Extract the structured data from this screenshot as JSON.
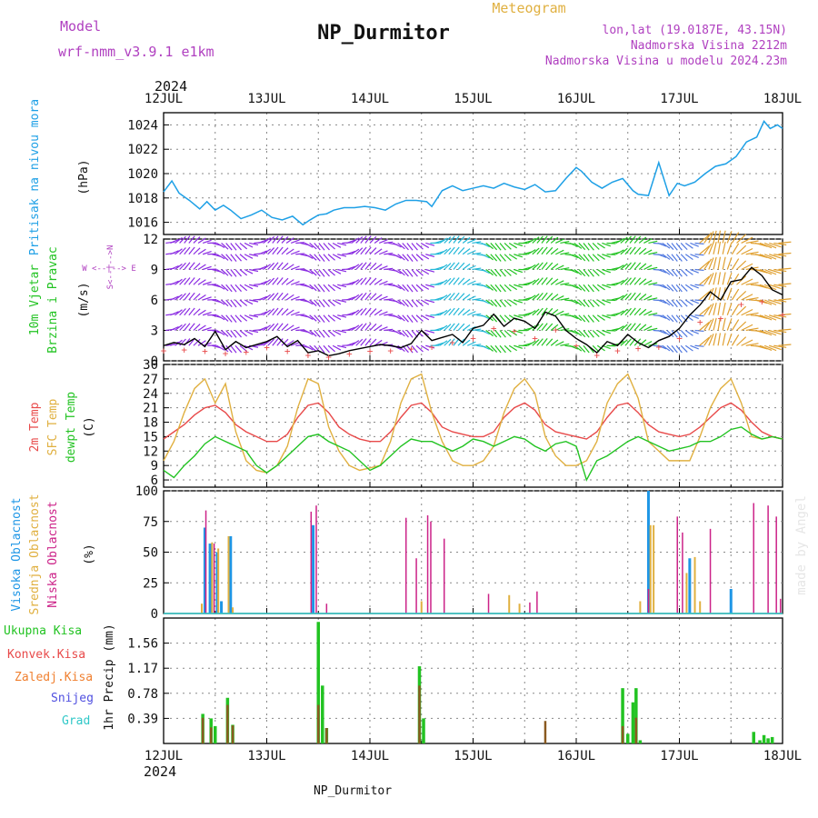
{
  "header": {
    "model_label": "Model",
    "model_name": "wrf-nmm_v3.9.1 e1km",
    "title": "NP_Durmitor",
    "meteogram": "Meteogram",
    "lonlat": "lon,lat (19.0187E, 43.15N)",
    "altitude": "Nadmorska Visina 2212m",
    "model_altitude": "Nadmorska Visina u modelu 2024.23m",
    "year_top": "2024",
    "year_bottom": "2024",
    "footer_name": "NP_Durmitor",
    "credit": "made by Angel"
  },
  "colors": {
    "pressure": "#1ea0e6",
    "wind_green": "#22c322",
    "temp2m": "#e84a4a",
    "sfc": "#e0b040",
    "dew": "#22c322",
    "high": "#1e96e6",
    "mid": "#e0b040",
    "low": "#cc2288",
    "total": "#22c322",
    "conv": "#e84a4a",
    "frozen": "#f08030",
    "snow": "#5050e0",
    "grad": "#30c8c8",
    "axis_label_purple": "#b040c0"
  },
  "chart_data": [
    {
      "type": "line",
      "panel": "pressure",
      "ylabel": "Pritisak na nivou mora",
      "unit": "(hPa)",
      "x_ticks": [
        "12JUL",
        "13JUL",
        "14JUL",
        "15JUL",
        "16JUL",
        "17JUL",
        "18JUL"
      ],
      "xlim_days": [
        0,
        6
      ],
      "ylim": [
        1015,
        1025
      ],
      "y_ticks": [
        1016,
        1018,
        1020,
        1022,
        1024
      ],
      "series": [
        {
          "x": [
            0,
            0.08,
            0.15,
            0.25,
            0.35,
            0.42,
            0.5,
            0.58,
            0.65,
            0.75,
            0.85,
            0.95,
            1.05,
            1.15,
            1.25,
            1.35,
            1.42,
            1.5,
            1.58,
            1.65,
            1.75,
            1.85,
            1.95,
            2.05,
            2.15,
            2.25,
            2.35,
            2.45,
            2.55,
            2.6,
            2.7,
            2.8,
            2.9,
            3.0,
            3.1,
            3.2,
            3.3,
            3.4,
            3.5,
            3.6,
            3.7,
            3.8,
            3.9,
            4.0,
            4.05,
            4.15,
            4.25,
            4.35,
            4.45,
            4.55,
            4.6,
            4.7,
            4.8,
            4.9,
            4.98,
            5.05,
            5.15,
            5.25,
            5.35,
            5.45,
            5.55,
            5.65,
            5.75,
            5.82,
            5.88,
            5.95,
            6.0
          ],
          "y": [
            1018.5,
            1019.4,
            1018.4,
            1017.8,
            1017.1,
            1017.7,
            1017.0,
            1017.4,
            1017.0,
            1016.3,
            1016.6,
            1017.0,
            1016.4,
            1016.2,
            1016.5,
            1015.8,
            1016.2,
            1016.6,
            1016.7,
            1017.0,
            1017.2,
            1017.2,
            1017.3,
            1017.2,
            1017.0,
            1017.5,
            1017.8,
            1017.8,
            1017.7,
            1017.3,
            1018.6,
            1019.0,
            1018.6,
            1018.8,
            1019.0,
            1018.8,
            1019.2,
            1018.9,
            1018.7,
            1019.1,
            1018.5,
            1018.6,
            1019.6,
            1020.5,
            1020.2,
            1019.3,
            1018.8,
            1019.3,
            1019.6,
            1018.6,
            1018.3,
            1018.2,
            1020.9,
            1018.2,
            1019.2,
            1019.0,
            1019.3,
            1020.0,
            1020.6,
            1020.8,
            1021.4,
            1022.6,
            1023.0,
            1024.3,
            1023.7,
            1024.0,
            1023.7
          ]
        }
      ]
    },
    {
      "type": "line",
      "panel": "wind",
      "ylabel": "10m Vjetar Brzina i Pravac",
      "unit": "(m/s)",
      "direction_key": "W <--|--> E",
      "direction_key_vertical": "S<--|-->N",
      "ylim": [
        0,
        12
      ],
      "y_ticks": [
        0,
        3,
        6,
        9,
        12
      ],
      "series": [
        {
          "name": "speed",
          "x": [
            0,
            0.1,
            0.2,
            0.3,
            0.4,
            0.5,
            0.6,
            0.7,
            0.8,
            0.9,
            1.0,
            1.1,
            1.2,
            1.3,
            1.4,
            1.5,
            1.6,
            1.7,
            1.8,
            1.9,
            2.0,
            2.1,
            2.2,
            2.3,
            2.4,
            2.5,
            2.6,
            2.7,
            2.8,
            2.9,
            3.0,
            3.1,
            3.2,
            3.3,
            3.4,
            3.5,
            3.6,
            3.7,
            3.8,
            3.9,
            4.0,
            4.1,
            4.2,
            4.3,
            4.4,
            4.5,
            4.6,
            4.7,
            4.8,
            4.9,
            5.0,
            5.1,
            5.2,
            5.3,
            5.4,
            5.5,
            5.6,
            5.7,
            5.8,
            5.9,
            6.0
          ],
          "y": [
            1.5,
            1.8,
            1.6,
            2.2,
            1.4,
            2.9,
            1.1,
            1.9,
            1.3,
            1.6,
            1.9,
            2.4,
            1.4,
            2.0,
            0.8,
            1.0,
            0.5,
            0.7,
            1.0,
            1.2,
            1.4,
            1.6,
            1.5,
            1.3,
            1.7,
            3.0,
            2.0,
            2.3,
            2.6,
            1.8,
            3.2,
            3.5,
            4.6,
            3.4,
            4.2,
            3.9,
            3.2,
            4.8,
            4.4,
            3.0,
            2.2,
            1.6,
            0.8,
            1.9,
            1.5,
            2.6,
            1.8,
            1.3,
            2.0,
            2.4,
            3.2,
            4.5,
            5.5,
            6.8,
            6.0,
            7.8,
            8.0,
            9.2,
            8.4,
            7.0,
            6.5
          ]
        }
      ]
    },
    {
      "type": "line",
      "panel": "temperature",
      "ylabel_1": "2m Temp",
      "ylabel_2": "SFC Temp",
      "ylabel_3": "dewpt Temp",
      "unit": "(C)",
      "ylim": [
        4.5,
        30
      ],
      "y_ticks": [
        6,
        9,
        12,
        15,
        18,
        21,
        24,
        27,
        30
      ],
      "x": [
        0,
        0.1,
        0.2,
        0.3,
        0.4,
        0.5,
        0.6,
        0.7,
        0.8,
        0.9,
        1.0,
        1.1,
        1.2,
        1.3,
        1.4,
        1.5,
        1.6,
        1.7,
        1.8,
        1.9,
        2.0,
        2.1,
        2.2,
        2.3,
        2.4,
        2.5,
        2.6,
        2.7,
        2.8,
        2.9,
        3.0,
        3.1,
        3.2,
        3.3,
        3.4,
        3.5,
        3.6,
        3.7,
        3.8,
        3.9,
        4.0,
        4.1,
        4.2,
        4.3,
        4.4,
        4.5,
        4.6,
        4.7,
        4.8,
        4.9,
        5.0,
        5.1,
        5.2,
        5.3,
        5.4,
        5.5,
        5.6,
        5.7,
        5.8,
        5.9,
        6.0
      ],
      "series": [
        {
          "name": "2m Temp",
          "values": [
            14.5,
            16,
            17.5,
            19.5,
            21,
            21.5,
            20,
            17.5,
            16,
            15,
            14,
            14,
            15.5,
            19,
            21.5,
            22,
            20,
            17,
            15.5,
            14.5,
            14,
            14,
            16,
            19,
            21.5,
            22,
            20,
            17,
            16,
            15.5,
            15,
            15,
            16,
            19,
            21,
            22,
            20.5,
            17.5,
            16,
            15.5,
            15,
            14.5,
            16,
            19,
            21.5,
            22,
            20,
            17.5,
            16,
            15.5,
            15,
            15.5,
            17,
            19,
            21,
            22,
            20.5,
            18,
            16,
            15,
            14.5
          ]
        },
        {
          "name": "SFC Temp",
          "values": [
            10,
            14,
            20,
            25,
            27,
            22,
            26,
            16,
            10,
            8,
            7.5,
            9,
            13,
            21,
            27,
            26,
            17,
            12,
            9,
            8,
            8.5,
            9,
            14,
            22,
            27,
            28,
            20,
            14,
            10,
            9,
            9,
            10,
            13,
            20,
            25,
            27,
            24,
            15,
            11,
            9,
            9,
            10,
            14,
            22,
            26,
            28,
            23,
            14,
            12,
            10,
            10,
            10,
            15,
            21,
            25,
            27,
            22,
            15,
            14.5,
            15,
            14.5
          ]
        },
        {
          "name": "dewpt Temp",
          "values": [
            8,
            6.5,
            9,
            11,
            13.5,
            15,
            14,
            13,
            12,
            9,
            7.5,
            9,
            11,
            13,
            15,
            15.5,
            14,
            13,
            12,
            10,
            8,
            9,
            11,
            13,
            14.5,
            14,
            14,
            13,
            12,
            13,
            14.5,
            14,
            13,
            14,
            15,
            14.5,
            13,
            12,
            13.5,
            14,
            13,
            6,
            10,
            11,
            12.5,
            14,
            15,
            14,
            13,
            12,
            12.5,
            13,
            14,
            14,
            15,
            16.5,
            17,
            15.5,
            14.5,
            15,
            14.5
          ]
        }
      ]
    },
    {
      "type": "bar",
      "panel": "cloud",
      "ylabel_1": "Visoka Oblacnost",
      "ylabel_2": "Srednja Oblacnost",
      "ylabel_3": "Niska Oblacnost",
      "unit": "(%)",
      "ylim": [
        0,
        100
      ],
      "y_ticks": [
        0,
        25,
        50,
        75,
        100
      ],
      "series": [
        {
          "name": "Visoka Oblacnost",
          "x": [
            0.4,
            0.45,
            0.52,
            0.56,
            0.65,
            1.45,
            4.7,
            5.1,
            5.5
          ],
          "values": [
            70,
            57,
            50,
            10,
            63,
            72,
            100,
            45,
            20
          ]
        },
        {
          "name": "Srednja Oblacnost",
          "x": [
            0.37,
            0.47,
            0.53,
            0.63,
            0.67,
            2.5,
            3.35,
            3.45,
            4.62,
            4.72,
            4.75,
            5.07,
            5.15,
            5.2
          ],
          "values": [
            8,
            58,
            53,
            63,
            5,
            10,
            15,
            8,
            10,
            72,
            72,
            33,
            46,
            10
          ]
        },
        {
          "name": "Niska Oblacnost",
          "x": [
            0.41,
            0.49,
            1.43,
            1.48,
            1.58,
            2.35,
            2.45,
            2.56,
            2.59,
            2.72,
            3.15,
            3.55,
            3.62,
            4.7,
            4.98,
            5.03,
            5.3,
            5.72,
            5.86,
            5.94,
            5.98
          ],
          "values": [
            84,
            57,
            83,
            88,
            8,
            78,
            45,
            80,
            75,
            61,
            16,
            9,
            18,
            20,
            79,
            66,
            69,
            90,
            88,
            79,
            12
          ]
        }
      ]
    },
    {
      "type": "bar",
      "panel": "precip",
      "ylabel_1": "Ukupna Kisa",
      "ylabel_2": "Konvek.Kisa",
      "ylabel_3": "Zaledj.Kisa",
      "ylabel_4": "Snijeg",
      "ylabel_5": "Grad",
      "unit": "1hr Precip (mm)",
      "ylim": [
        0,
        1.95
      ],
      "y_ticks": [
        0.39,
        0.78,
        1.17,
        1.56
      ],
      "series": [
        {
          "name": "Ukupna Kisa",
          "x": [
            0.38,
            0.46,
            0.5,
            0.62,
            0.67,
            1.5,
            1.54,
            1.58,
            2.48,
            2.52,
            4.45,
            4.5,
            4.55,
            4.58,
            4.62,
            5.72,
            5.78,
            5.82,
            5.86,
            5.9
          ],
          "values": [
            0.46,
            0.39,
            0.27,
            0.71,
            0.29,
            1.89,
            0.9,
            0.24,
            1.2,
            0.39,
            0.86,
            0.15,
            0.64,
            0.86,
            0.05,
            0.18,
            0.05,
            0.13,
            0.08,
            0.1
          ]
        },
        {
          "name": "Konvek.Kisa",
          "x": [
            0.38,
            0.46,
            0.62,
            0.67,
            1.5,
            1.58,
            2.48,
            3.7,
            4.45,
            4.58
          ],
          "values": [
            0.4,
            0.25,
            0.6,
            0.28,
            0.6,
            0.24,
            0.9,
            0.35,
            0.27,
            0.4
          ]
        }
      ]
    }
  ]
}
